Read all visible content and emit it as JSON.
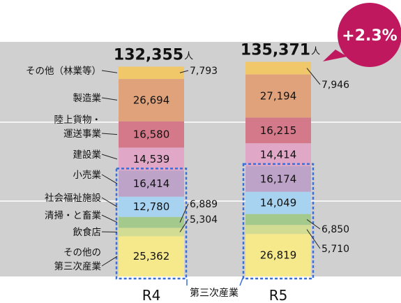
{
  "chart_data": {
    "type": "bar",
    "stacked": true,
    "categories": [
      "R4",
      "R5"
    ],
    "totals": [
      "132,355",
      "135,371"
    ],
    "total_unit": "人",
    "growth": "+2.3%",
    "group_label": "第三次産業",
    "series": [
      {
        "name": "その他の第三次産業",
        "label_lines": [
          "その他の",
          "第三次産業"
        ],
        "values": [
          25362,
          26819
        ],
        "labels": [
          "25,362",
          "26,819"
        ],
        "color": "#f6e98c",
        "label_pos": "inside"
      },
      {
        "name": "飲食店",
        "label_lines": [
          "飲食店"
        ],
        "values": [
          5304,
          5710
        ],
        "labels": [
          "5,304",
          "5,710"
        ],
        "color": "#d3dc93",
        "label_pos": "outside"
      },
      {
        "name": "清掃・と畜業",
        "label_lines": [
          "清掃・と畜業"
        ],
        "values": [
          6889,
          6850
        ],
        "labels": [
          "6,889",
          "6,850"
        ],
        "color": "#a3c98c",
        "label_pos": "outside"
      },
      {
        "name": "社会福祉施設",
        "label_lines": [
          "社会福祉施設"
        ],
        "values": [
          12780,
          14049
        ],
        "labels": [
          "12,780",
          "14,049"
        ],
        "color": "#a8d3f0",
        "label_pos": "inside"
      },
      {
        "name": "小売業",
        "label_lines": [
          "小売業"
        ],
        "values": [
          16414,
          16174
        ],
        "labels": [
          "16,414",
          "16,174"
        ],
        "color": "#bda3c8",
        "label_pos": "inside"
      },
      {
        "name": "建設業",
        "label_lines": [
          "建設業"
        ],
        "values": [
          14539,
          14414
        ],
        "labels": [
          "14,539",
          "14,414"
        ],
        "color": "#e0a8c6",
        "label_pos": "inside"
      },
      {
        "name": "陸上貨物・運送事業",
        "label_lines": [
          "陸上貨物・",
          "運送事業"
        ],
        "values": [
          16580,
          16215
        ],
        "labels": [
          "16,580",
          "16,215"
        ],
        "color": "#d3798a",
        "label_pos": "inside"
      },
      {
        "name": "製造業",
        "label_lines": [
          "製造業"
        ],
        "values": [
          26694,
          27194
        ],
        "labels": [
          "26,694",
          "27,194"
        ],
        "color": "#dfa27a",
        "label_pos": "inside"
      },
      {
        "name": "その他（林業等）",
        "label_lines": [
          "その他（林業等）"
        ],
        "values": [
          7793,
          7946
        ],
        "labels": [
          "7,793",
          "7,946"
        ],
        "color": "#f0c86a",
        "label_pos": "outside"
      }
    ],
    "colors": {
      "grid_band": "#d0d0d0",
      "group_box": "#3a6fd8",
      "badge": "#c0185f"
    }
  }
}
